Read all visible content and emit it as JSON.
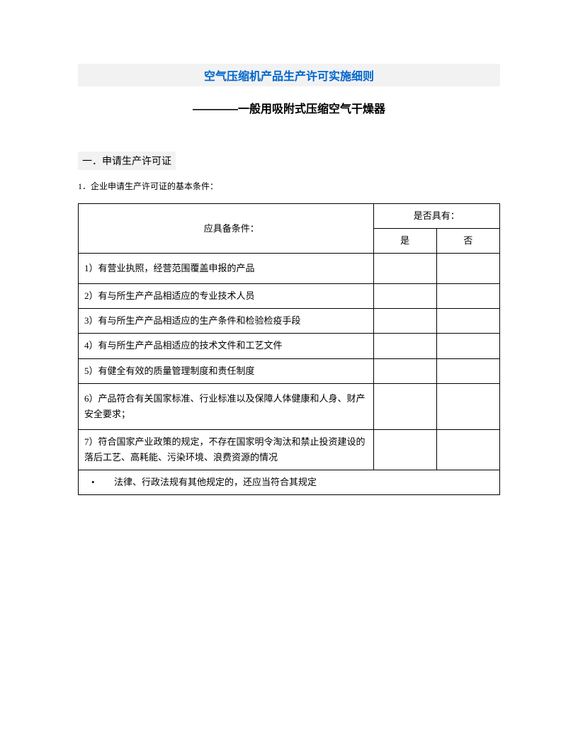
{
  "title": "空气压缩机产品生产许可实施细则",
  "subtitle": "————一般用吸附式压缩空气干燥器",
  "section_header": "一．申请生产许可证",
  "intro": "1．企业申请生产许可证的基本条件：",
  "table": {
    "header_conditions": "应具备条件：",
    "header_has": "是否具有：",
    "col_yes": "是",
    "col_no": "否",
    "rows": [
      "1）有营业执照，经营范围覆盖申报的产品",
      "2）有与所生产产品相适应的专业技术人员",
      "3）有与所生产产品相适应的生产条件和检验检疫手段",
      "4）有与所生产产品相适应的技术文件和工艺文件",
      "5）有健全有效的质量管理制度和责任制度",
      "6）产品符合有关国家标准、行业标准以及保障人体健康和人身、财产安全要求；",
      "7）符合国家产业政策的规定，不存在国家明令淘汰和禁止投资建设的落后工艺、高耗能、污染环境、浪费资源的情况"
    ],
    "footer": "法律、行政法规有其他规定的，还应当符合其规定"
  }
}
